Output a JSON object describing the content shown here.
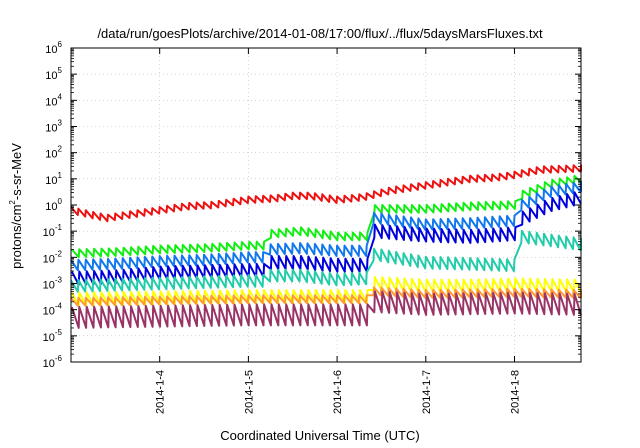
{
  "chart_data": {
    "type": "line",
    "title": "/data/run/goesPlots/archive/2014-01-08/17:00/flux/../flux/5daysMarsFluxes.txt",
    "xlabel": "Coordinated Universal Time (UTC)",
    "ylabel": {
      "pre": "protons/cm",
      "sup": "2",
      "post": "-s-sr-MeV"
    },
    "y_scale": "log",
    "ylim_exp": [
      -6,
      6
    ],
    "y_ticks": [
      {
        "base": "10",
        "exp": "-6"
      },
      {
        "base": "10",
        "exp": "-5"
      },
      {
        "base": "10",
        "exp": "-4"
      },
      {
        "base": "10",
        "exp": "-3"
      },
      {
        "base": "10",
        "exp": "-2"
      },
      {
        "base": "10",
        "exp": "-1"
      },
      {
        "base": "10",
        "exp": "0"
      },
      {
        "base": "10",
        "exp": "1"
      },
      {
        "base": "10",
        "exp": "2"
      },
      {
        "base": "10",
        "exp": "3"
      },
      {
        "base": "10",
        "exp": "4"
      },
      {
        "base": "10",
        "exp": "5"
      },
      {
        "base": "10",
        "exp": "6"
      }
    ],
    "xlim_days": [
      3.0,
      8.75
    ],
    "x_ticks": [
      {
        "label": "2014-1-4",
        "day": 4
      },
      {
        "label": "2014-1-5",
        "day": 5
      },
      {
        "label": "2014-1-6",
        "day": 6
      },
      {
        "label": "2014-1-7",
        "day": 7
      },
      {
        "label": "2014-1-8",
        "day": 8
      }
    ],
    "grid": true,
    "legend": "none",
    "series": [
      {
        "color": "#ee1111",
        "amp": 0.25,
        "nodes": [
          [
            3.0,
            -0.2
          ],
          [
            3.4,
            -0.5
          ],
          [
            3.6,
            -0.4
          ],
          [
            3.8,
            -0.3
          ],
          [
            4.0,
            -0.2
          ],
          [
            4.3,
            -0.05
          ],
          [
            4.6,
            0.0
          ],
          [
            5.0,
            0.2
          ],
          [
            5.3,
            0.25
          ],
          [
            5.5,
            0.35
          ],
          [
            5.7,
            0.35
          ],
          [
            6.0,
            0.2
          ],
          [
            6.3,
            0.3
          ],
          [
            6.6,
            0.55
          ],
          [
            7.0,
            0.75
          ],
          [
            7.5,
            1.0
          ],
          [
            7.8,
            1.05
          ],
          [
            8.0,
            1.15
          ],
          [
            8.3,
            1.35
          ],
          [
            8.75,
            1.4
          ]
        ]
      },
      {
        "color": "#11ee11",
        "amp": 0.3,
        "nodes": [
          [
            3.0,
            -1.85
          ],
          [
            3.5,
            -1.8
          ],
          [
            4.0,
            -1.7
          ],
          [
            4.5,
            -1.65
          ],
          [
            5.0,
            -1.55
          ],
          [
            5.15,
            -1.55
          ],
          [
            5.25,
            -1.1
          ],
          [
            5.6,
            -1.0
          ],
          [
            6.0,
            -1.2
          ],
          [
            6.35,
            -1.2
          ],
          [
            6.45,
            -0.15
          ],
          [
            7.0,
            -0.15
          ],
          [
            7.5,
            -0.05
          ],
          [
            8.0,
            0.0
          ],
          [
            8.1,
            0.4
          ],
          [
            8.4,
            0.8
          ],
          [
            8.75,
            1.0
          ]
        ]
      },
      {
        "color": "#1177ee",
        "amp": 0.4,
        "nodes": [
          [
            3.0,
            -2.3
          ],
          [
            3.5,
            -2.25
          ],
          [
            4.0,
            -2.15
          ],
          [
            4.5,
            -2.1
          ],
          [
            5.0,
            -2.0
          ],
          [
            5.15,
            -2.0
          ],
          [
            5.25,
            -1.7
          ],
          [
            5.6,
            -1.65
          ],
          [
            6.0,
            -1.75
          ],
          [
            6.35,
            -1.75
          ],
          [
            6.45,
            -0.5
          ],
          [
            7.0,
            -0.75
          ],
          [
            7.5,
            -0.7
          ],
          [
            8.0,
            -0.6
          ],
          [
            8.1,
            0.0
          ],
          [
            8.4,
            0.5
          ],
          [
            8.75,
            0.7
          ]
        ]
      },
      {
        "color": "#0000dd",
        "amp": 0.5,
        "nodes": [
          [
            3.0,
            -2.8
          ],
          [
            3.5,
            -2.75
          ],
          [
            4.0,
            -2.6
          ],
          [
            4.5,
            -2.55
          ],
          [
            5.0,
            -2.5
          ],
          [
            5.15,
            -2.5
          ],
          [
            5.25,
            -2.2
          ],
          [
            5.6,
            -2.2
          ],
          [
            6.0,
            -2.3
          ],
          [
            6.35,
            -2.3
          ],
          [
            6.45,
            -1.0
          ],
          [
            7.0,
            -1.15
          ],
          [
            7.5,
            -1.2
          ],
          [
            8.0,
            -1.1
          ],
          [
            8.1,
            -0.5
          ],
          [
            8.4,
            0.0
          ],
          [
            8.75,
            0.3
          ]
        ]
      },
      {
        "color": "#22ccaa",
        "amp": 0.45,
        "nodes": [
          [
            3.0,
            -3.1
          ],
          [
            3.5,
            -3.05
          ],
          [
            4.0,
            -3.0
          ],
          [
            4.5,
            -2.95
          ],
          [
            5.0,
            -2.9
          ],
          [
            5.15,
            -2.9
          ],
          [
            5.25,
            -2.7
          ],
          [
            5.6,
            -2.7
          ],
          [
            6.0,
            -2.85
          ],
          [
            6.35,
            -2.8
          ],
          [
            6.45,
            -1.9
          ],
          [
            7.0,
            -2.2
          ],
          [
            7.5,
            -2.25
          ],
          [
            7.95,
            -2.3
          ],
          [
            8.05,
            -1.2
          ],
          [
            8.4,
            -1.35
          ],
          [
            8.75,
            -1.5
          ]
        ]
      },
      {
        "color": "#ffff00",
        "amp": 0.5,
        "nodes": [
          [
            3.0,
            -3.6
          ],
          [
            4.0,
            -3.55
          ],
          [
            5.0,
            -3.5
          ],
          [
            6.0,
            -3.5
          ],
          [
            6.35,
            -3.5
          ],
          [
            6.45,
            -3.0
          ],
          [
            7.0,
            -3.1
          ],
          [
            7.5,
            -3.1
          ],
          [
            8.0,
            -3.05
          ],
          [
            8.75,
            -3.1
          ]
        ]
      },
      {
        "color": "#ff9933",
        "amp": 0.3,
        "nodes": [
          [
            3.0,
            -3.7
          ],
          [
            4.0,
            -3.65
          ],
          [
            5.0,
            -3.6
          ],
          [
            6.0,
            -3.6
          ],
          [
            6.35,
            -3.6
          ],
          [
            6.45,
            -3.3
          ],
          [
            7.0,
            -3.4
          ],
          [
            8.0,
            -3.35
          ],
          [
            8.75,
            -3.4
          ]
        ]
      },
      {
        "color": "#993366",
        "amp": 0.8,
        "nodes": [
          [
            3.0,
            -4.3
          ],
          [
            4.0,
            -4.25
          ],
          [
            5.0,
            -4.2
          ],
          [
            6.0,
            -4.2
          ],
          [
            6.35,
            -4.2
          ],
          [
            6.45,
            -3.7
          ],
          [
            7.0,
            -3.8
          ],
          [
            8.0,
            -3.75
          ],
          [
            8.75,
            -3.8
          ]
        ]
      }
    ]
  }
}
